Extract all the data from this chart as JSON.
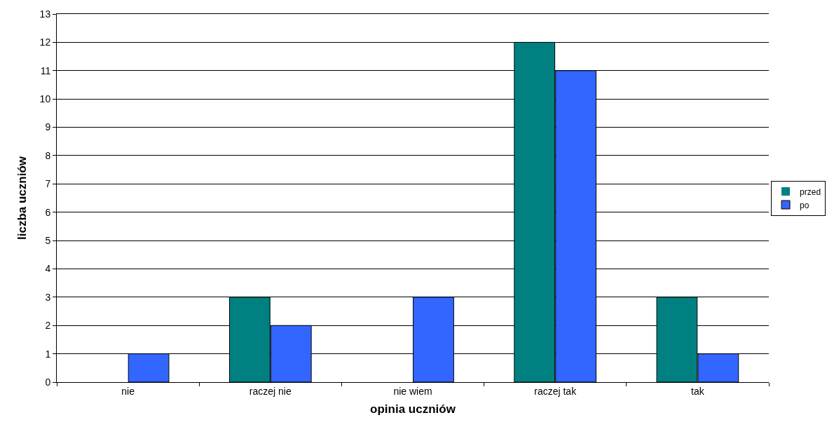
{
  "chart_data": {
    "type": "bar",
    "xlabel": "opinia uczniów",
    "ylabel": "liczba uczniów",
    "categories": [
      "nie",
      "raczej nie",
      "nie wiem",
      "raczej tak",
      "tak"
    ],
    "series": [
      {
        "name": "przed",
        "color": "#008080",
        "values": [
          0,
          3,
          0,
          12,
          3
        ]
      },
      {
        "name": "po",
        "color": "#3366ff",
        "values": [
          1,
          2,
          3,
          11,
          1
        ]
      }
    ],
    "ylim": [
      0,
      13
    ],
    "yticks": [
      0,
      1,
      2,
      3,
      4,
      5,
      6,
      7,
      8,
      9,
      10,
      11,
      12,
      13
    ],
    "grid": "y",
    "legend": "right"
  }
}
